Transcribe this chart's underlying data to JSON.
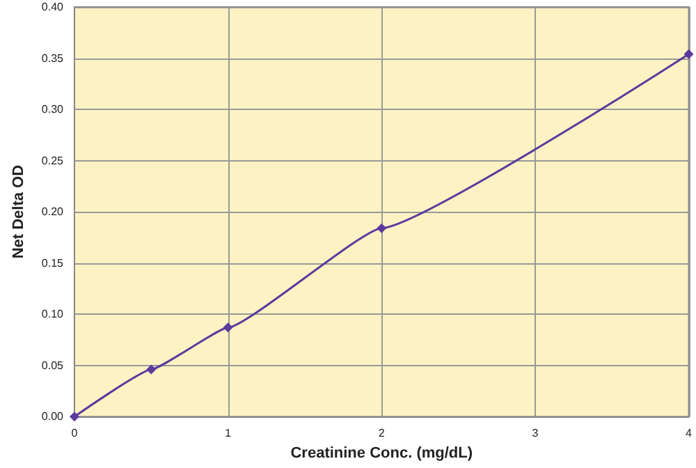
{
  "chart_data": {
    "type": "line",
    "xlabel": "Creatinine Conc. (mg/dL)",
    "ylabel": "Net Delta OD",
    "x": [
      0,
      0.5,
      1,
      2,
      4
    ],
    "series": [
      {
        "color": "#5b3a9e",
        "values": [
          0,
          0.046,
          0.087,
          0.184,
          0.354
        ]
      }
    ],
    "xlim": [
      0,
      4
    ],
    "xticks": [
      0,
      1,
      2,
      3,
      4
    ],
    "ylim": [
      0,
      0.4
    ],
    "yticks": [
      {
        "value": 0,
        "label": "0.00"
      },
      {
        "value": 0.05,
        "label": "0.05"
      },
      {
        "value": 0.1,
        "label": "0.10"
      },
      {
        "value": 0.15,
        "label": "0.15"
      },
      {
        "value": 0.2,
        "label": "0.20"
      },
      {
        "value": 0.25,
        "label": "0.25"
      },
      {
        "value": 0.3,
        "label": "0.30"
      },
      {
        "value": 0.35,
        "label": "0.35"
      },
      {
        "value": 0.4,
        "label": "0.40"
      }
    ],
    "grid": true,
    "marker": "diamond",
    "line_style": "solid"
  }
}
